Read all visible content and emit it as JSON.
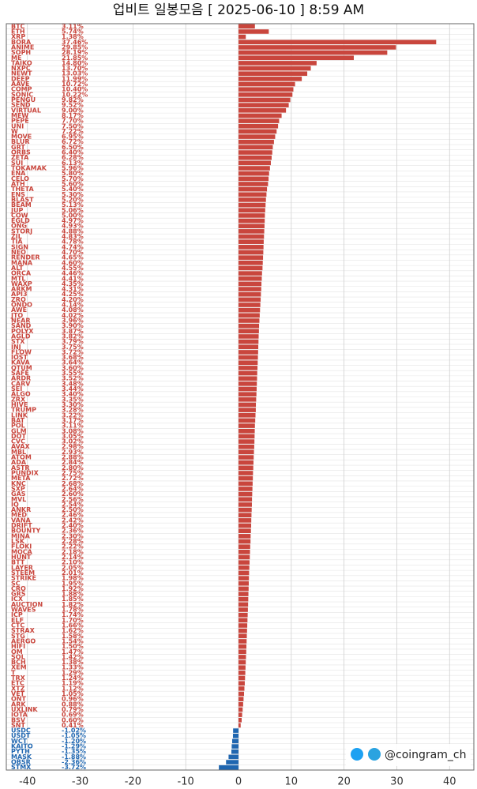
{
  "chart_data": {
    "type": "bar",
    "orientation": "horizontal",
    "title": "업비트 일봉모음 [ 2025-06-10 ]  8:59 AM",
    "watermark": "@coingram_ch",
    "up_color": "#c9463d",
    "down_color": "#1f66b0",
    "xlim": [
      -44,
      44.6
    ],
    "xticks": [
      -40,
      -30,
      -20,
      -10,
      0,
      10,
      20,
      30,
      40
    ],
    "grid": true,
    "categories": [
      "BTC",
      "ETH",
      "XRP",
      "BORA",
      "ANIME",
      "SOPH",
      "ME",
      "TAIKO",
      "NXPC",
      "NEWT",
      "DEEP",
      "AAVE",
      "COMP",
      "SONIC",
      "PENGU",
      "SEND",
      "VIRTUAL",
      "MEW",
      "PEPE",
      "UNI",
      "W",
      "MOVE",
      "BLUR",
      "GRT",
      "ORBS",
      "ZETA",
      "SUI",
      "TOKAMAK",
      "ENA",
      "CELO",
      "ATH",
      "THETA",
      "ENS",
      "BLAST",
      "BEAM",
      "JUP",
      "COW",
      "EGLD",
      "ONG",
      "STORJ",
      "ZIL",
      "TIA",
      "SIGN",
      "NEO",
      "RENDER",
      "MANA",
      "ALT",
      "ORCA",
      "MTL",
      "WAXP",
      "ARKM",
      "API3",
      "ZRO",
      "ONDO",
      "AWE",
      "JTO",
      "NEAR",
      "SAND",
      "POLYX",
      "AGLD",
      "STX",
      "INJ",
      "FLOW",
      "IOST",
      "KAVA",
      "QTUM",
      "SAFE",
      "ARDR",
      "CARV",
      "SEI",
      "ALGO",
      "ZRX",
      "HIVE",
      "TRUMP",
      "LINK",
      "BAT",
      "POL",
      "GLM",
      "DOT",
      "CVC",
      "AVAX",
      "MBL",
      "ATOM",
      "ADA",
      "ASTR",
      "PUNDIX",
      "META",
      "KNC",
      "SXP",
      "GAS",
      "MVL",
      "IQ",
      "ANKR",
      "MED",
      "VANA",
      "DRIFT",
      "BOUNTY",
      "MINA",
      "LSK",
      "FLOKI",
      "MOCA",
      "HUNT",
      "BTT",
      "LAYER",
      "STEEM",
      "STRIKE",
      "SC",
      "CRO",
      "GRS",
      "ICX",
      "AUCTION",
      "WAVES",
      "ICP",
      "ELF",
      "CTC",
      "STRAX",
      "STG",
      "AERGO",
      "HIFI",
      "OM",
      "SOL",
      "BCH",
      "XEM",
      "T",
      "TRX",
      "ETC",
      "XTZ",
      "VET",
      "ONT",
      "ARK",
      "UXLINK",
      "IOTA",
      "BSV",
      "SNT",
      "USDC",
      "USDT",
      "WCT",
      "KAITO",
      "PYTH",
      "MASK",
      "OBSR",
      "STMX"
    ],
    "values": [
      3.11,
      5.74,
      1.38,
      37.46,
      29.85,
      28.19,
      21.85,
      14.8,
      13.7,
      13.03,
      11.99,
      10.72,
      10.4,
      10.22,
      9.82,
      9.52,
      9.0,
      8.17,
      7.7,
      7.5,
      7.22,
      6.95,
      6.72,
      6.5,
      6.4,
      6.28,
      6.13,
      5.96,
      5.8,
      5.7,
      5.6,
      5.4,
      5.3,
      5.2,
      5.13,
      5.06,
      5.0,
      4.97,
      4.93,
      4.88,
      4.83,
      4.78,
      4.74,
      4.7,
      4.65,
      4.6,
      4.55,
      4.46,
      4.41,
      4.35,
      4.31,
      4.25,
      4.2,
      4.14,
      4.08,
      4.02,
      3.96,
      3.9,
      3.87,
      3.82,
      3.79,
      3.75,
      3.72,
      3.68,
      3.64,
      3.6,
      3.55,
      3.52,
      3.48,
      3.44,
      3.4,
      3.35,
      3.3,
      3.28,
      3.22,
      3.17,
      3.11,
      3.08,
      3.05,
      3.02,
      2.98,
      2.93,
      2.88,
      2.84,
      2.8,
      2.75,
      2.72,
      2.68,
      2.64,
      2.6,
      2.56,
      2.54,
      2.5,
      2.46,
      2.42,
      2.4,
      2.36,
      2.3,
      2.28,
      2.22,
      2.18,
      2.14,
      2.1,
      2.05,
      2.01,
      1.98,
      1.95,
      1.92,
      1.88,
      1.85,
      1.82,
      1.78,
      1.74,
      1.7,
      1.66,
      1.62,
      1.58,
      1.54,
      1.5,
      1.47,
      1.42,
      1.38,
      1.33,
      1.29,
      1.24,
      1.19,
      1.12,
      1.05,
      0.96,
      0.88,
      0.79,
      0.69,
      0.6,
      0.41,
      -1.02,
      -1.05,
      -1.2,
      -1.29,
      -1.35,
      -1.88,
      -2.36,
      -3.72
    ],
    "value_labels": [
      "3.11%",
      "5.74%",
      "1.38%",
      "37.46%",
      "29.85%",
      "28.19%",
      "21.85%",
      "14.80%",
      "13.70%",
      "13.03%",
      "11.99%",
      "10.72%",
      "10.40%",
      "10.22%",
      "9.82%",
      "9.52%",
      "9.00%",
      "8.17%",
      "7.70%",
      "7.50%",
      "7.22%",
      "6.95%",
      "6.72%",
      "6.50%",
      "6.40%",
      "6.28%",
      "6.13%",
      "5.96%",
      "5.80%",
      "5.70%",
      "5.60%",
      "5.40%",
      "5.30%",
      "5.20%",
      "5.13%",
      "5.06%",
      "5.00%",
      "4.97%",
      "4.93%",
      "4.88%",
      "4.83%",
      "4.78%",
      "4.74%",
      "4.70%",
      "4.65%",
      "4.60%",
      "4.55%",
      "4.46%",
      "4.41%",
      "4.35%",
      "4.31%",
      "4.25%",
      "4.20%",
      "4.14%",
      "4.08%",
      "4.02%",
      "3.96%",
      "3.90%",
      "3.87%",
      "3.82%",
      "3.79%",
      "3.75%",
      "3.72%",
      "3.68%",
      "3.64%",
      "3.60%",
      "3.55%",
      "3.52%",
      "3.48%",
      "3.44%",
      "3.40%",
      "3.35%",
      "3.30%",
      "3.28%",
      "3.22%",
      "3.17%",
      "3.11%",
      "3.08%",
      "3.05%",
      "3.02%",
      "2.98%",
      "2.93%",
      "2.88%",
      "2.84%",
      "2.80%",
      "2.75%",
      "2.72%",
      "2.68%",
      "2.64%",
      "2.60%",
      "2.56%",
      "2.54%",
      "2.50%",
      "2.46%",
      "2.42%",
      "2.40%",
      "2.36%",
      "2.30%",
      "2.28%",
      "2.22%",
      "2.18%",
      "2.14%",
      "2.10%",
      "2.05%",
      "2.01%",
      "1.98%",
      "1.95%",
      "1.92%",
      "1.88%",
      "1.85%",
      "1.82%",
      "1.78%",
      "1.74%",
      "1.70%",
      "1.66%",
      "1.62%",
      "1.58%",
      "1.54%",
      "1.50%",
      "1.47%",
      "1.42%",
      "1.38%",
      "1.33%",
      "1.29%",
      "1.24%",
      "1.19%",
      "1.12%",
      "1.05%",
      "0.96%",
      "0.88%",
      "0.79%",
      "0.69%",
      "0.60%",
      "0.41%",
      "-1.02%",
      "-1.05%",
      "-1.20%",
      "-1.29%",
      "-1.35%",
      "-1.88%",
      "-2.36%",
      "-3.72%"
    ]
  }
}
